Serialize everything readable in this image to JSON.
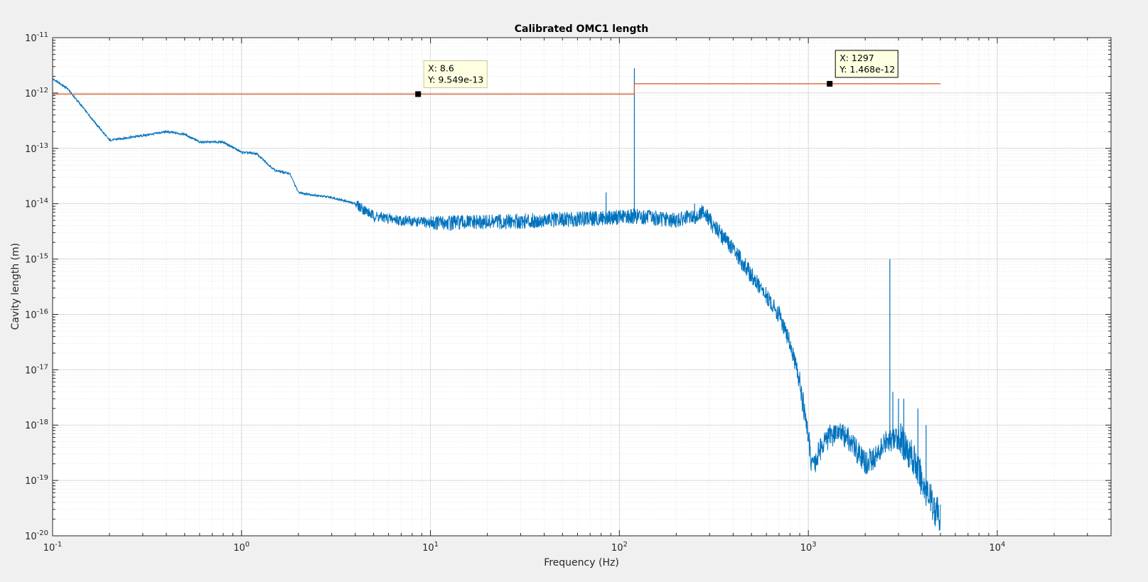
{
  "chart_data": {
    "type": "line",
    "title": "Calibrated OMC1 length",
    "xlabel": "Frequency (Hz)",
    "ylabel": "Cavity length (m)",
    "x_scale": "log",
    "y_scale": "log",
    "xlim": [
      0.1,
      40000
    ],
    "ylim": [
      1e-20,
      1e-11
    ],
    "grid": true,
    "minor_grid": true,
    "x_ticks": [
      {
        "base": "10",
        "exp": "-1"
      },
      {
        "base": "10",
        "exp": "0"
      },
      {
        "base": "10",
        "exp": "1"
      },
      {
        "base": "10",
        "exp": "2"
      },
      {
        "base": "10",
        "exp": "3"
      },
      {
        "base": "10",
        "exp": "4"
      }
    ],
    "y_ticks": [
      {
        "base": "10",
        "exp": "-20"
      },
      {
        "base": "10",
        "exp": "-19"
      },
      {
        "base": "10",
        "exp": "-18"
      },
      {
        "base": "10",
        "exp": "-17"
      },
      {
        "base": "10",
        "exp": "-16"
      },
      {
        "base": "10",
        "exp": "-15"
      },
      {
        "base": "10",
        "exp": "-14"
      },
      {
        "base": "10",
        "exp": "-13"
      },
      {
        "base": "10",
        "exp": "-12"
      },
      {
        "base": "10",
        "exp": "-11"
      }
    ],
    "series": [
      {
        "color": "#0072bd",
        "points": [
          [
            0.1,
            1.8e-12
          ],
          [
            0.12,
            1.2e-12
          ],
          [
            0.2,
            1.4e-13
          ],
          [
            0.3,
            1.7e-13
          ],
          [
            0.4,
            2e-13
          ],
          [
            0.5,
            1.8e-13
          ],
          [
            0.6,
            1.3e-13
          ],
          [
            0.8,
            1.3e-13
          ],
          [
            1.0,
            8.5e-14
          ],
          [
            1.2,
            8e-14
          ],
          [
            1.5,
            4e-14
          ],
          [
            1.8,
            3.5e-14
          ],
          [
            2.0,
            1.6e-14
          ],
          [
            2.5,
            1.4e-14
          ],
          [
            3.0,
            1.3e-14
          ],
          [
            4.0,
            1e-14
          ],
          [
            5.0,
            6e-15
          ],
          [
            7.0,
            5e-15
          ],
          [
            10.0,
            4.5e-15
          ],
          [
            20.0,
            4.6e-15
          ],
          [
            40.0,
            5e-15
          ],
          [
            80.0,
            5.5e-15
          ],
          [
            120.0,
            6e-15
          ],
          [
            200.0,
            5e-15
          ],
          [
            260.0,
            6e-15
          ],
          [
            280.0,
            7.5e-15
          ],
          [
            300.0,
            5e-15
          ],
          [
            400.0,
            1.5e-15
          ],
          [
            500.0,
            5e-16
          ],
          [
            700.0,
            1e-16
          ],
          [
            800.0,
            3e-17
          ],
          [
            900.0,
            6e-18
          ],
          [
            1000.0,
            6e-19
          ],
          [
            1050.0,
            1.6e-19
          ],
          [
            1100.0,
            2.5e-19
          ],
          [
            1200.0,
            5e-19
          ],
          [
            1400.0,
            7.5e-19
          ],
          [
            1600.0,
            6e-19
          ],
          [
            1800.0,
            3.5e-19
          ],
          [
            2000.0,
            2e-19
          ],
          [
            2200.0,
            2.5e-19
          ],
          [
            2600.0,
            5e-19
          ],
          [
            3000.0,
            6e-19
          ],
          [
            3500.0,
            3e-19
          ],
          [
            4000.0,
            1e-19
          ],
          [
            4500.0,
            4e-20
          ],
          [
            5000.0,
            2e-20
          ]
        ],
        "spikes": [
          {
            "x": 85,
            "y": 1.6e-14
          },
          {
            "x": 120,
            "y": 2.8e-12
          },
          {
            "x": 250,
            "y": 1e-14
          },
          {
            "x": 2700,
            "y": 1e-15
          },
          {
            "x": 2800,
            "y": 4e-18
          },
          {
            "x": 3000,
            "y": 3e-18
          },
          {
            "x": 3200,
            "y": 3e-18
          },
          {
            "x": 3800,
            "y": 2e-18
          },
          {
            "x": 4200,
            "y": 1e-18
          }
        ]
      },
      {
        "color": "#d95319",
        "segments": [
          {
            "x": [
              0.1,
              120
            ],
            "y": 9.549e-13
          },
          {
            "x": [
              120,
              5000
            ],
            "y": 1.468e-12
          }
        ]
      }
    ],
    "datatips": [
      {
        "x": 8.6,
        "y": 9.549e-13,
        "x_label": "X: 8.6",
        "y_label": "Y: 9.549e-13"
      },
      {
        "x": 1297,
        "y": 1.468e-12,
        "x_label": "X: 1297",
        "y_label": "Y: 1.468e-12"
      }
    ]
  }
}
